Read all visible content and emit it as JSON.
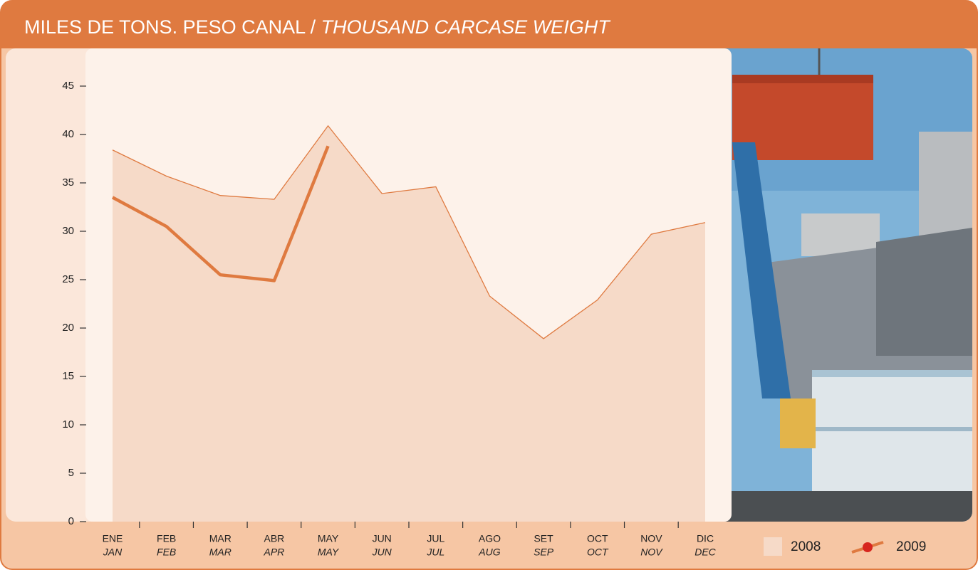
{
  "chart_data": {
    "type": "line",
    "title": "MILES DE TONS. PESO CANAL /",
    "subtitle": "THOUSAND CARCASE WEIGHT",
    "categories": [
      "ENE",
      "FEB",
      "MAR",
      "ABR",
      "MAY",
      "JUN",
      "JUL",
      "AGO",
      "SET",
      "OCT",
      "NOV",
      "DIC"
    ],
    "categories_en": [
      "JAN",
      "FEB",
      "MAR",
      "APR",
      "MAY",
      "JUN",
      "JUL",
      "AUG",
      "SEP",
      "OCT",
      "NOV",
      "DEC"
    ],
    "series": [
      {
        "name": "2008",
        "color": "#f6dac8",
        "values": [
          38.4,
          35.7,
          33.7,
          33.3,
          40.9,
          33.9,
          34.6,
          23.3,
          18.9,
          22.9,
          29.7,
          30.9
        ]
      },
      {
        "name": "2009",
        "color": "#df7a40",
        "values": [
          33.5,
          30.5,
          25.5,
          24.9,
          38.8,
          null,
          null,
          null,
          null,
          null,
          null,
          null
        ]
      }
    ],
    "ylim": [
      0,
      48
    ],
    "yticks": [
      0,
      5,
      10,
      15,
      20,
      25,
      30,
      35,
      40,
      45
    ]
  }
}
